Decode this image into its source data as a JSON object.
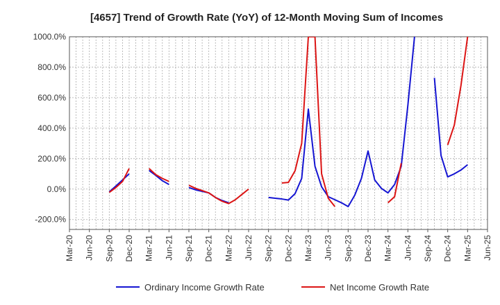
{
  "chart_data": {
    "type": "line",
    "title": "[4657]  Trend of Growth Rate (YoY) of 12-Month Moving Sum of Incomes",
    "xlabel": "",
    "ylabel": "",
    "ylim": [
      -265,
      1000
    ],
    "y_ticks": [
      {
        "value": 1000,
        "label": "1000.0%"
      },
      {
        "value": 800,
        "label": "800.0%"
      },
      {
        "value": 600,
        "label": "600.0%"
      },
      {
        "value": 400,
        "label": "400.0%"
      },
      {
        "value": 200,
        "label": "200.0%"
      },
      {
        "value": 0,
        "label": "0.0%"
      },
      {
        "value": -200,
        "label": "-200.0%"
      }
    ],
    "x_tick_labels": [
      "Mar-20",
      "Jun-20",
      "Sep-20",
      "Dec-20",
      "Mar-21",
      "Jun-21",
      "Sep-21",
      "Dec-21",
      "Mar-22",
      "Jun-22",
      "Sep-22",
      "Dec-22",
      "Mar-23",
      "Jun-23",
      "Sep-23",
      "Dec-23",
      "Mar-24",
      "Jun-24",
      "Sep-24",
      "Dec-24",
      "Mar-25",
      "Jun-25"
    ],
    "grid": true,
    "legend_position": "bottom",
    "x": [
      "2020-03",
      "2020-04",
      "2020-05",
      "2020-06",
      "2020-07",
      "2020-08",
      "2020-09",
      "2020-10",
      "2020-11",
      "2020-12",
      "2021-01",
      "2021-02",
      "2021-03",
      "2021-04",
      "2021-05",
      "2021-06",
      "2021-07",
      "2021-08",
      "2021-09",
      "2021-10",
      "2021-11",
      "2021-12",
      "2022-01",
      "2022-02",
      "2022-03",
      "2022-04",
      "2022-05",
      "2022-06",
      "2022-07",
      "2022-08",
      "2022-09",
      "2022-10",
      "2022-11",
      "2022-12",
      "2023-01",
      "2023-02",
      "2023-03",
      "2023-04",
      "2023-05",
      "2023-06",
      "2023-07",
      "2023-08",
      "2023-09",
      "2023-10",
      "2023-11",
      "2023-12",
      "2024-01",
      "2024-02",
      "2024-03",
      "2024-04",
      "2024-05",
      "2024-06",
      "2024-07",
      "2024-08",
      "2024-09",
      "2024-10",
      "2024-11",
      "2024-12",
      "2025-01",
      "2025-02",
      "2025-03"
    ],
    "series": [
      {
        "name": "Ordinary Income Growth Rate",
        "color": "#1414d2",
        "values": [
          8,
          null,
          null,
          22,
          null,
          null,
          -18,
          20,
          60,
          100,
          null,
          null,
          122,
          90,
          55,
          30,
          null,
          null,
          10,
          -5,
          -15,
          -25,
          -55,
          -75,
          -90,
          null,
          null,
          -55,
          null,
          null,
          -55,
          -60,
          -65,
          -72,
          -30,
          70,
          525,
          150,
          15,
          -50,
          -70,
          -90,
          -115,
          -40,
          70,
          250,
          60,
          5,
          -25,
          30,
          150,
          550,
          1000,
          null,
          null,
          730,
          220,
          80,
          100,
          125,
          160
        ]
      },
      {
        "name": "Net Income Growth Rate",
        "color": "#dc1414",
        "values": [
          40,
          null,
          null,
          36,
          null,
          null,
          -22,
          10,
          50,
          135,
          null,
          null,
          135,
          95,
          70,
          50,
          null,
          null,
          25,
          5,
          -10,
          -25,
          -55,
          -80,
          -95,
          -70,
          -35,
          0,
          null,
          null,
          35,
          null,
          40,
          44,
          120,
          300,
          1000,
          1000,
          100,
          -60,
          -115,
          null,
          -135,
          null,
          null,
          -80,
          null,
          null,
          -90,
          -50,
          170,
          null,
          null,
          null,
          null,
          null,
          null,
          290,
          420,
          680,
          1000
        ]
      }
    ]
  }
}
